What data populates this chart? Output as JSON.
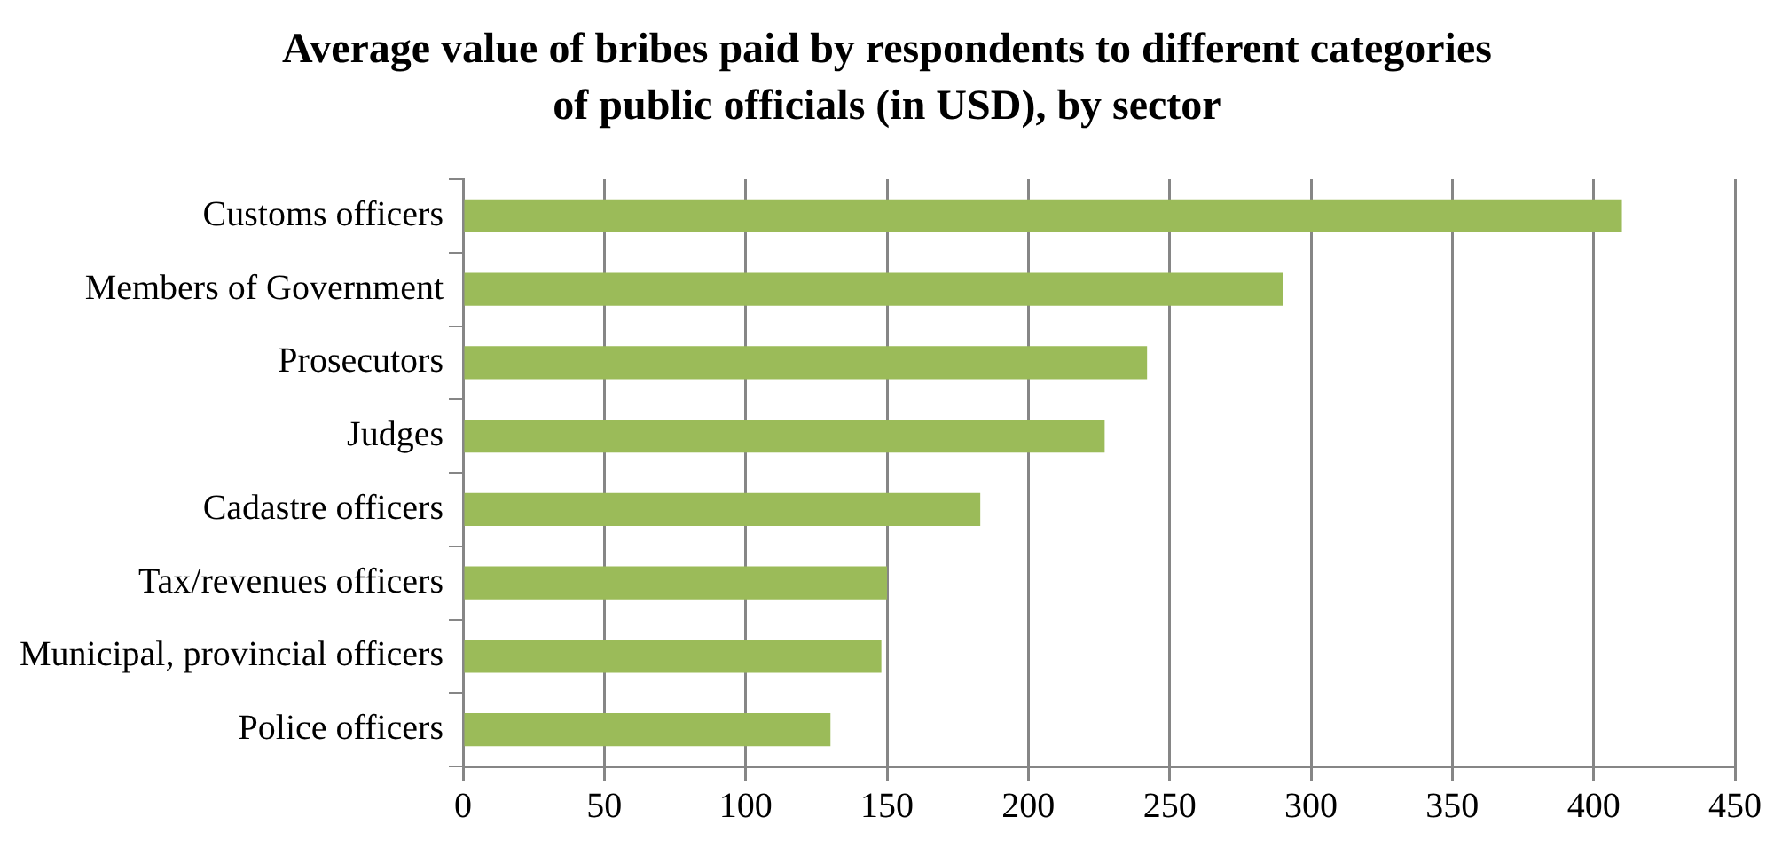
{
  "chart_data": {
    "type": "bar",
    "orientation": "horizontal",
    "title": "Average value of bribes paid by respondents to different categories of public officials (in USD), by sector",
    "categories": [
      "Customs officers",
      "Members of Government",
      "Prosecutors",
      "Judges",
      "Cadastre officers",
      "Tax/revenues officers",
      "Municipal, provincial officers",
      "Police officers"
    ],
    "values": [
      410,
      290,
      242,
      227,
      183,
      150,
      148,
      130
    ],
    "color": "#9bbb59",
    "xlim": [
      0,
      450
    ],
    "xticks": [
      0,
      50,
      100,
      150,
      200,
      250,
      300,
      350,
      400,
      450
    ],
    "grid": "x",
    "legend": false
  }
}
